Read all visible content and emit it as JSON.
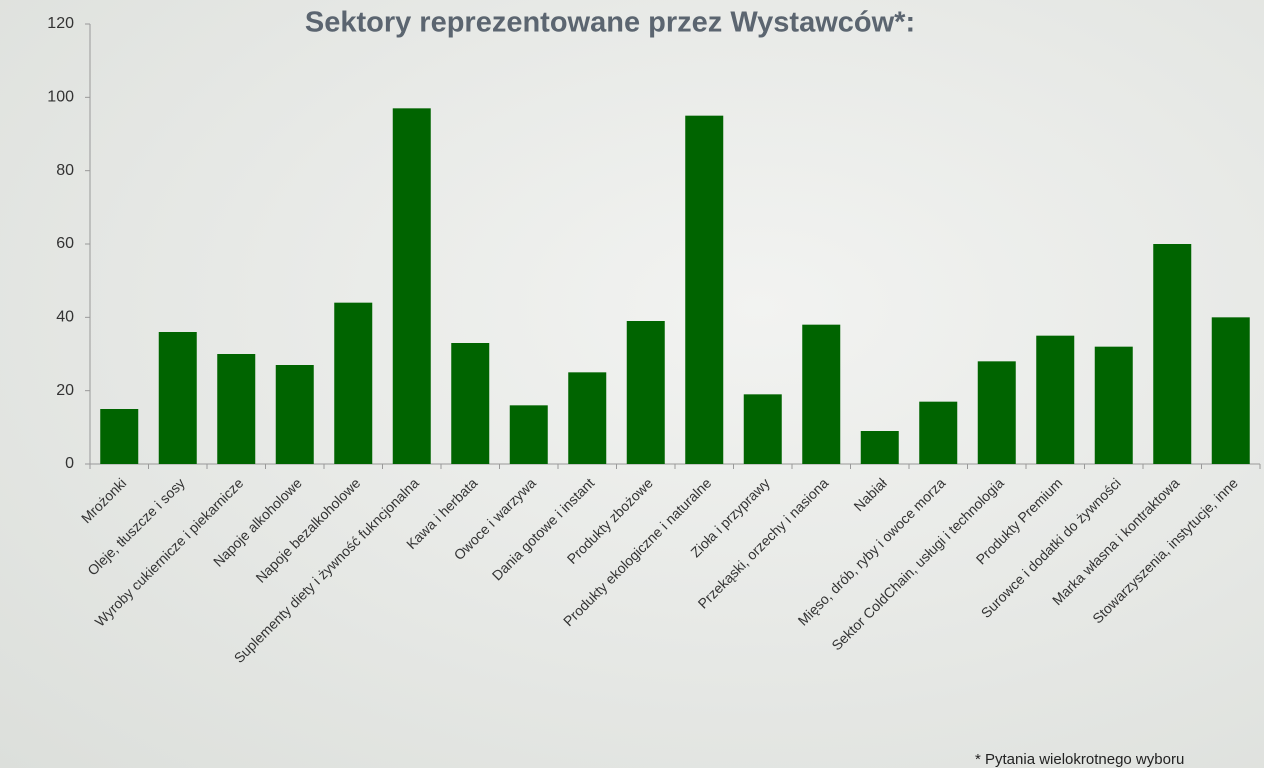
{
  "chart_data": {
    "type": "bar",
    "title": "Sektory reprezentowane przez Wystawców*:",
    "categories": [
      "Mrożonki",
      "Oleje, tłuszcze i sosy",
      "Wyroby cukiernicze i piekarnicze",
      "Napoje alkoholowe",
      "Napoje bezalkoholowe",
      "Suplementy diety i żywność fukncjonalna",
      "Kawa i herbata",
      "Owoce i warzywa",
      "Dania gotowe i instant",
      "Produkty zbożowe",
      "Produkty ekologiczne i naturalne",
      "Zioła i przyprawy",
      "Przekąski, orzechy i nasiona",
      "Nabiał",
      "Mięso, drób, ryby i owoce morza",
      "Sektor ColdChain, usługi i technologia",
      "Produkty Premium",
      "Surowce i dodatki do żywności",
      "Marka własna i kontraktowa",
      "Stowarzyszenia, instytucje, inne"
    ],
    "values": [
      15,
      36,
      30,
      27,
      44,
      97,
      33,
      16,
      25,
      39,
      95,
      19,
      38,
      9,
      17,
      28,
      35,
      32,
      60,
      40
    ],
    "color": "#006400",
    "ylim": [
      0,
      120
    ],
    "yticks": [
      0,
      20,
      40,
      60,
      80,
      100,
      120
    ],
    "grid": false,
    "footnote": "* Pytania wielokrotnego wyboru"
  }
}
